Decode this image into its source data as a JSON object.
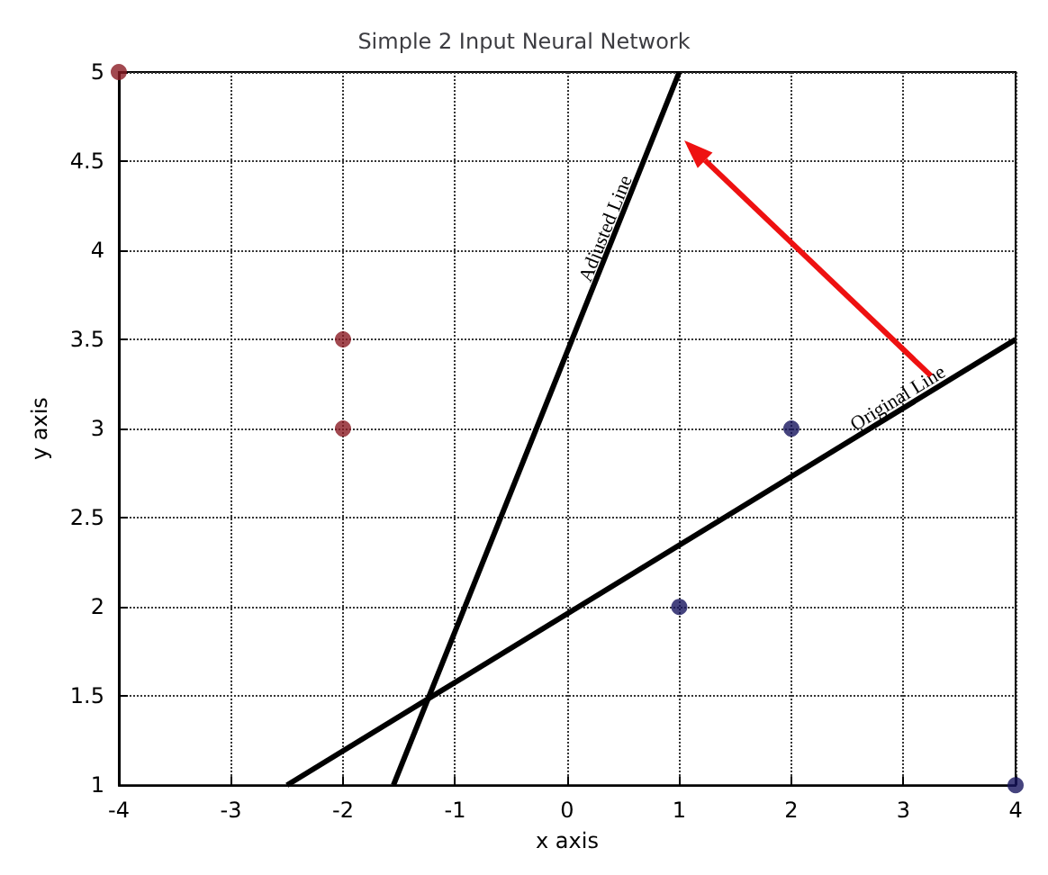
{
  "chart_data": {
    "type": "scatter",
    "title": "Simple 2 Input Neural Network",
    "xlabel": "x axis",
    "ylabel": "y axis",
    "series": [
      {
        "color": "#8b1c24",
        "x": [
          -4,
          -2,
          -2
        ],
        "values": [
          5,
          3.5,
          3
        ]
      },
      {
        "color": "#16145e",
        "x": [
          1,
          2,
          4
        ],
        "values": [
          2,
          3,
          1
        ]
      },
      {
        "type": "line",
        "color": "#000000",
        "marker": "none",
        "x": [
          -2.5,
          4
        ],
        "values": [
          1,
          3.5
        ]
      },
      {
        "type": "line",
        "color": "#000000",
        "marker": "none",
        "x": [
          -1.55,
          1
        ],
        "values": [
          1,
          5
        ]
      }
    ],
    "annotations": [
      {
        "text": "Original Line",
        "x": 3,
        "y": 3.12
      },
      {
        "text": "Adjusted Line",
        "x": 0.43,
        "y": 4.1
      }
    ],
    "xlim": [
      -4,
      4
    ],
    "ylim": [
      1,
      5
    ],
    "xticks": [
      -4,
      -3,
      -2,
      -1,
      0,
      1,
      2,
      3,
      4
    ],
    "yticks": [
      1,
      1.5,
      2,
      2.5,
      3,
      3.5,
      4,
      4.5,
      5
    ],
    "grid": true,
    "marker": "circle",
    "line_style": "solid"
  }
}
